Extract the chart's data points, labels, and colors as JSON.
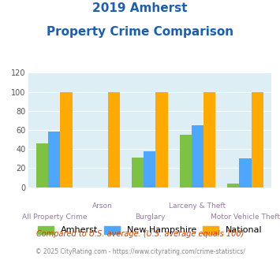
{
  "title_line1": "2019 Amherst",
  "title_line2": "Property Crime Comparison",
  "categories": [
    "All Property Crime",
    "Arson",
    "Burglary",
    "Larceny & Theft",
    "Motor Vehicle Theft"
  ],
  "amherst": [
    46,
    0,
    31,
    55,
    4
  ],
  "new_hampshire": [
    58,
    0,
    38,
    65,
    30
  ],
  "national": [
    100,
    100,
    100,
    100,
    100
  ],
  "color_amherst": "#7dc242",
  "color_nh": "#4da6ff",
  "color_national": "#ffaa00",
  "bar_width": 0.25,
  "ylim": [
    0,
    120
  ],
  "yticks": [
    0,
    20,
    40,
    60,
    80,
    100,
    120
  ],
  "bg_color": "#ddeef5",
  "legend_labels": [
    "Amherst",
    "New Hampshire",
    "National"
  ],
  "footnote1": "Compared to U.S. average. (U.S. average equals 100)",
  "footnote2": "© 2025 CityRating.com - https://www.cityrating.com/crime-statistics/",
  "title_color": "#1a5fb4",
  "footnote1_color": "#cc4400",
  "footnote2_color": "#888888",
  "xlabel_color": "#9977aa",
  "top_xlabels": [
    "",
    "Arson",
    "",
    "Larceny & Theft",
    ""
  ],
  "bottom_xlabels": [
    "All Property Crime",
    "",
    "Burglary",
    "",
    "Motor Vehicle Theft"
  ]
}
